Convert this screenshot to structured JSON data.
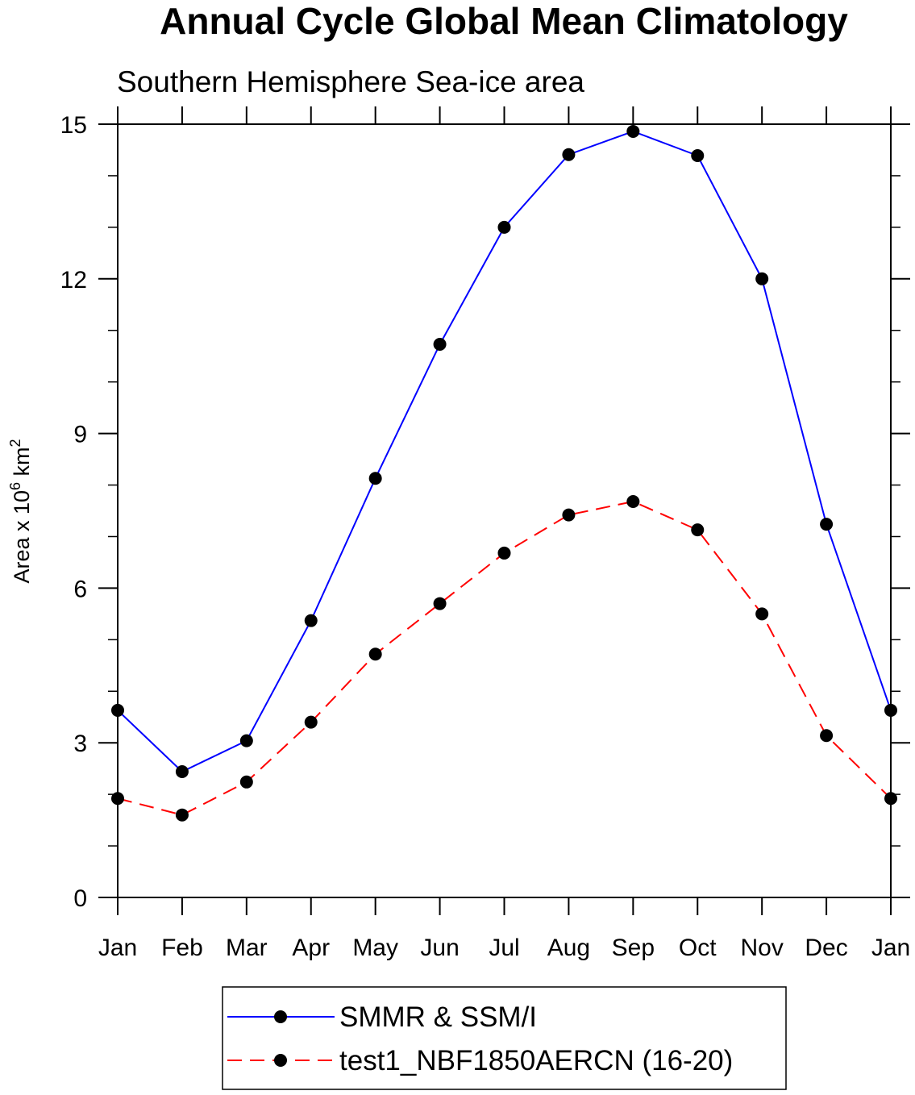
{
  "chart_data": {
    "type": "line",
    "title": "Annual Cycle Global Mean Climatology",
    "subtitle": "Southern Hemisphere Sea-ice area",
    "ylabel": {
      "prefix": "Area x 10",
      "exp1": "6",
      "mid": " km",
      "exp2": "2"
    },
    "xlabel": "",
    "categories": [
      "Jan",
      "Feb",
      "Mar",
      "Apr",
      "May",
      "Jun",
      "Jul",
      "Aug",
      "Sep",
      "Oct",
      "Nov",
      "Dec",
      "Jan"
    ],
    "ylim": [
      0,
      15
    ],
    "yticks": [
      0,
      3,
      6,
      9,
      12,
      15
    ],
    "yticks_labels": [
      "0",
      "3",
      "6",
      "9",
      "12",
      "15"
    ],
    "series": [
      {
        "name": "SMMR & SSM/I",
        "color": "#0000ff",
        "dash": "solid",
        "values": [
          3.63,
          2.44,
          3.04,
          5.37,
          8.13,
          10.73,
          13.0,
          14.41,
          14.86,
          14.39,
          12.0,
          7.24,
          3.63
        ]
      },
      {
        "name": "test1_NBF1850AERCN (16-20)",
        "color": "#ff0000",
        "dash": "dashed",
        "values": [
          1.92,
          1.6,
          2.24,
          3.4,
          4.72,
          5.7,
          6.68,
          7.42,
          7.68,
          7.13,
          5.5,
          3.14,
          1.92
        ]
      }
    ],
    "legend_position": "bottom-center",
    "grid": false
  }
}
